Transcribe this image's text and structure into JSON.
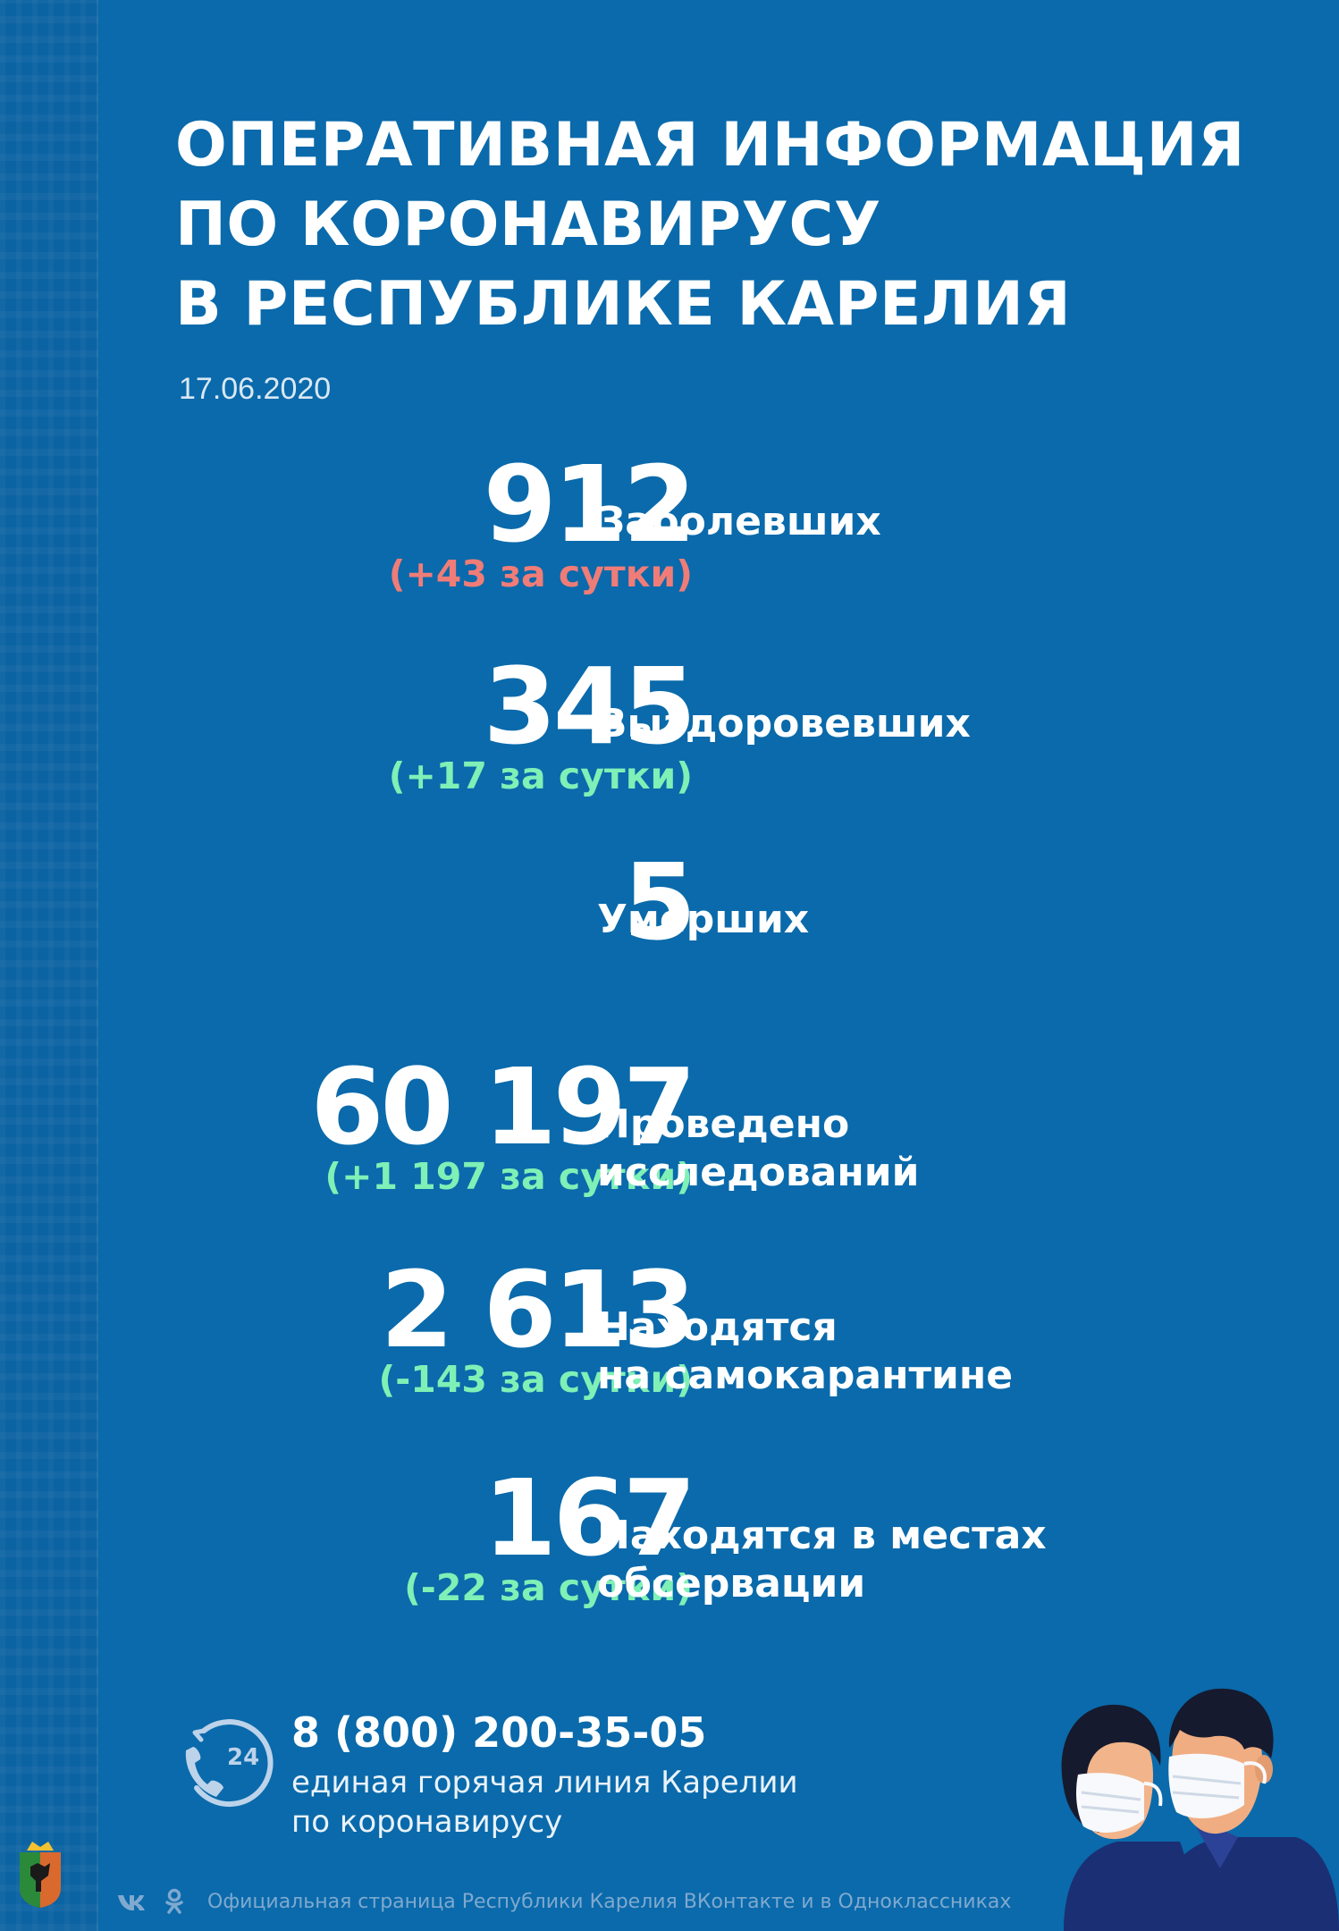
{
  "title_lines": [
    "ОПЕРАТИВНАЯ ИНФОРМАЦИЯ",
    "ПО КОРОНАВИРУСУ",
    "В РЕСПУБЛИКЕ КАРЕЛИЯ"
  ],
  "date": "17.06.2020",
  "stats": [
    {
      "value": "912",
      "delta": "(+43 за сутки)",
      "delta_color": "#f07c78",
      "label": [
        "Заболевших"
      ]
    },
    {
      "value": "345",
      "delta": "(+17 за сутки)",
      "delta_color": "#7ff0b6",
      "label": [
        "Выздоровевших"
      ]
    },
    {
      "value": "5",
      "delta": "",
      "label": [
        "Умерших"
      ]
    },
    {
      "value": "60 197",
      "delta": "(+1 197 за сутки)",
      "delta_color": "#7ff0b6",
      "label": [
        "Проведено",
        "исследований"
      ]
    },
    {
      "value": "2 613",
      "delta": "(-143 за сутки)",
      "delta_color": "#7ff0b6",
      "label": [
        "Находятся",
        "на самокарантине"
      ]
    },
    {
      "value": "167",
      "delta": "(-22 за сутки)",
      "delta_color": "#7ff0b6",
      "label": [
        "Находятся в местах",
        "обсервации"
      ]
    }
  ],
  "hotline": {
    "icon_text": "24",
    "phone": "8 (800) 200-35-05",
    "desc_lines": [
      "единая горячая линия Карелии",
      "по коронавирусу"
    ]
  },
  "footer": {
    "text": "Официальная страница Республики Карелия ВКонтакте и в Одноклассниках",
    "icons": [
      "vk-icon",
      "odnoklassniki-icon"
    ]
  },
  "colors": {
    "background": "#0a6aab",
    "delta_red": "#f07c78",
    "delta_green": "#7ff0b6"
  }
}
